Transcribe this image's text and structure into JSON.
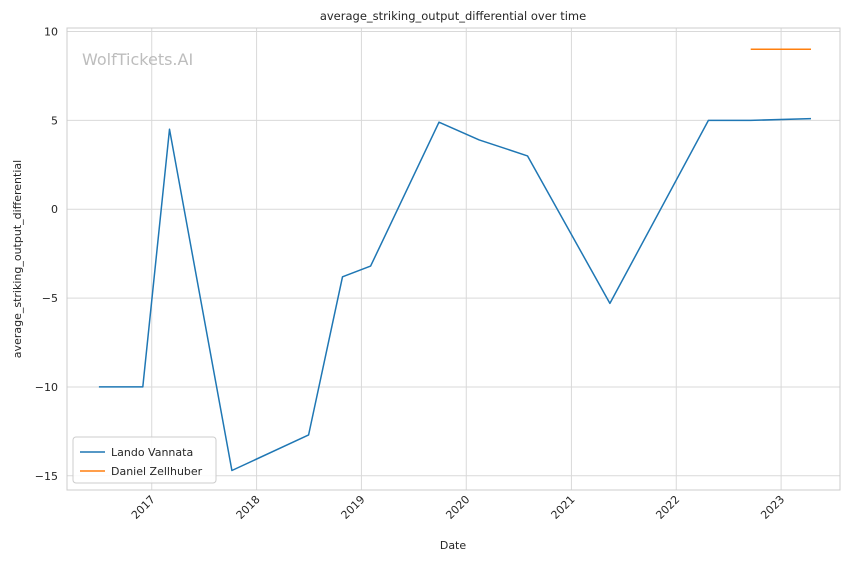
{
  "chart_data": {
    "type": "line",
    "title": "average_striking_output_differential over time",
    "xlabel": "Date",
    "ylabel": "average_striking_output_differential",
    "watermark": "WolfTickets.AI",
    "x_ticks": [
      "2017",
      "2018",
      "2019",
      "2020",
      "2021",
      "2022",
      "2023"
    ],
    "y_ticks": [
      10,
      5,
      0,
      -5,
      -10,
      -15
    ],
    "xlim": [
      "2016-03-12",
      "2023-07-25"
    ],
    "ylim": [
      -15.8,
      10.2
    ],
    "grid": true,
    "legend_position": "lower-left",
    "series": [
      {
        "name": "Lando Vannata",
        "color": "#1f77b4",
        "points": [
          {
            "x": "2016-07-01",
            "y": -10.0
          },
          {
            "x": "2016-12-01",
            "y": -10.0
          },
          {
            "x": "2017-03-04",
            "y": 4.5
          },
          {
            "x": "2017-10-07",
            "y": -14.7
          },
          {
            "x": "2018-07-01",
            "y": -12.7
          },
          {
            "x": "2018-10-27",
            "y": -3.8
          },
          {
            "x": "2019-02-02",
            "y": -3.2
          },
          {
            "x": "2019-09-28",
            "y": 4.9
          },
          {
            "x": "2020-02-15",
            "y": 3.9
          },
          {
            "x": "2020-08-01",
            "y": 3.0
          },
          {
            "x": "2021-05-15",
            "y": -5.3
          },
          {
            "x": "2022-04-23",
            "y": 5.0
          },
          {
            "x": "2022-09-17",
            "y": 5.0
          },
          {
            "x": "2023-04-15",
            "y": 5.1
          }
        ]
      },
      {
        "name": "Daniel Zellhuber",
        "color": "#ff7f0e",
        "points": [
          {
            "x": "2022-09-17",
            "y": 9.0
          },
          {
            "x": "2023-04-15",
            "y": 9.0
          }
        ]
      }
    ]
  }
}
